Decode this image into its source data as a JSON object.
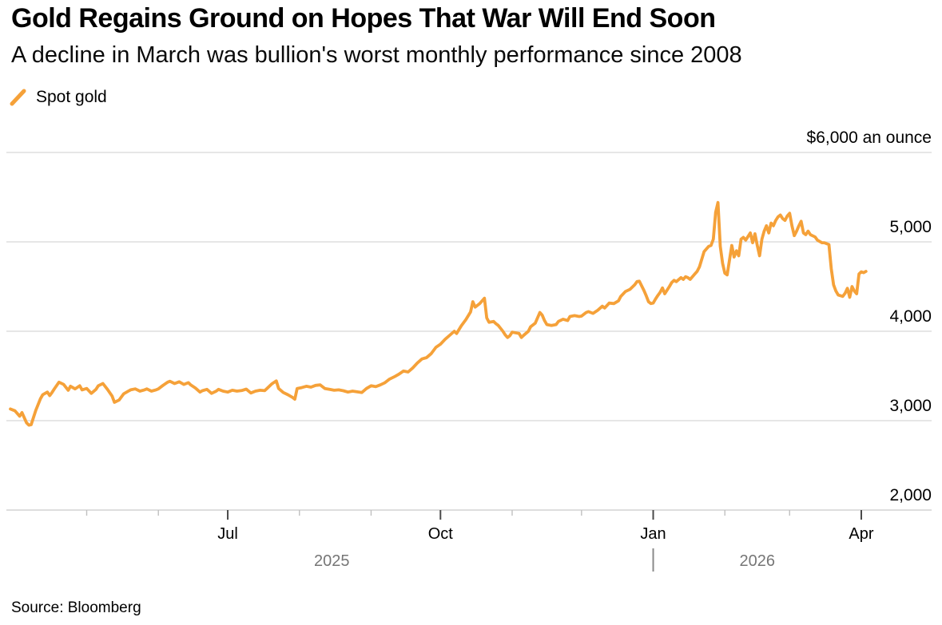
{
  "header": {
    "title": "Gold Regains Ground on Hopes That War Will End Soon",
    "subtitle": "A decline in March was bullion's worst monthly performance since 2008"
  },
  "legend": {
    "items": [
      {
        "label": "Spot gold",
        "marker": "orange-slash-icon"
      }
    ]
  },
  "source": "Source: Bloomberg",
  "colors": {
    "line": "#F5A139",
    "grid": "#D8D8D8",
    "axis": "#C9C9C9",
    "tick_minor": "#C0C0C0",
    "tick_major": "#4A4A4A",
    "year_text": "#767676",
    "divider": "#8A8A8A"
  },
  "chart_data": {
    "type": "line",
    "title": "Gold Regains Ground on Hopes That War Will End Soon",
    "subtitle": "A decline in March was bullion's worst monthly performance since 2008",
    "unit_label": "$6,000 an ounce",
    "grid": "horizontal",
    "legend_position": "top-left",
    "y_axis": {
      "min": 2000,
      "max": 6000,
      "ticks": [
        {
          "value": 6000,
          "label": "$6,000 an ounce"
        },
        {
          "value": 5000,
          "label": "5,000"
        },
        {
          "value": 4000,
          "label": "4,000"
        },
        {
          "value": 3000,
          "label": "3,000"
        },
        {
          "value": 2000,
          "label": "2,000"
        }
      ]
    },
    "x_axis": {
      "start": "2025-03-29",
      "end": "2026-04-08",
      "month_ticks": [
        "2025-05-01",
        "2025-06-01",
        "2025-07-01",
        "2025-08-01",
        "2025-09-01",
        "2025-10-01",
        "2025-11-01",
        "2025-12-01",
        "2026-01-01",
        "2026-02-01",
        "2026-03-01",
        "2026-04-01"
      ],
      "labeled_ticks": [
        {
          "date": "2025-07-01",
          "label": "Jul"
        },
        {
          "date": "2025-10-01",
          "label": "Oct"
        },
        {
          "date": "2026-01-01",
          "label": "Jan"
        },
        {
          "date": "2026-04-01",
          "label": "Apr"
        }
      ],
      "year_divider": "2026-01-01",
      "year_labels": [
        {
          "label": "2025",
          "span": [
            "2025-03-29",
            "2026-01-01"
          ]
        },
        {
          "label": "2026",
          "span": [
            "2026-01-01",
            "2026-04-01"
          ]
        }
      ]
    },
    "series": [
      {
        "name": "Spot gold",
        "color": "#F5A139",
        "points": [
          [
            "2025-03-29",
            3130
          ],
          [
            "2025-03-31",
            3110
          ],
          [
            "2025-04-02",
            3050
          ],
          [
            "2025-04-03",
            3090
          ],
          [
            "2025-04-05",
            2975
          ],
          [
            "2025-04-06",
            2950
          ],
          [
            "2025-04-07",
            2955
          ],
          [
            "2025-04-09",
            3115
          ],
          [
            "2025-04-11",
            3245
          ],
          [
            "2025-04-12",
            3290
          ],
          [
            "2025-04-14",
            3320
          ],
          [
            "2025-04-15",
            3280
          ],
          [
            "2025-04-16",
            3315
          ],
          [
            "2025-04-17",
            3355
          ],
          [
            "2025-04-19",
            3430
          ],
          [
            "2025-04-21",
            3405
          ],
          [
            "2025-04-23",
            3340
          ],
          [
            "2025-04-24",
            3385
          ],
          [
            "2025-04-26",
            3355
          ],
          [
            "2025-04-28",
            3390
          ],
          [
            "2025-04-29",
            3345
          ],
          [
            "2025-05-01",
            3360
          ],
          [
            "2025-05-03",
            3305
          ],
          [
            "2025-05-05",
            3350
          ],
          [
            "2025-05-06",
            3390
          ],
          [
            "2025-05-08",
            3415
          ],
          [
            "2025-05-10",
            3350
          ],
          [
            "2025-05-12",
            3275
          ],
          [
            "2025-05-13",
            3205
          ],
          [
            "2025-05-15",
            3230
          ],
          [
            "2025-05-17",
            3300
          ],
          [
            "2025-05-19",
            3330
          ],
          [
            "2025-05-20",
            3345
          ],
          [
            "2025-05-22",
            3355
          ],
          [
            "2025-05-24",
            3330
          ],
          [
            "2025-05-26",
            3345
          ],
          [
            "2025-05-27",
            3355
          ],
          [
            "2025-05-29",
            3330
          ],
          [
            "2025-05-31",
            3345
          ],
          [
            "2025-06-01",
            3355
          ],
          [
            "2025-06-03",
            3395
          ],
          [
            "2025-06-05",
            3430
          ],
          [
            "2025-06-06",
            3440
          ],
          [
            "2025-06-08",
            3415
          ],
          [
            "2025-06-10",
            3435
          ],
          [
            "2025-06-12",
            3405
          ],
          [
            "2025-06-14",
            3425
          ],
          [
            "2025-06-15",
            3400
          ],
          [
            "2025-06-17",
            3365
          ],
          [
            "2025-06-19",
            3320
          ],
          [
            "2025-06-20",
            3335
          ],
          [
            "2025-06-22",
            3350
          ],
          [
            "2025-06-24",
            3305
          ],
          [
            "2025-06-26",
            3330
          ],
          [
            "2025-06-27",
            3350
          ],
          [
            "2025-06-29",
            3330
          ],
          [
            "2025-07-01",
            3320
          ],
          [
            "2025-07-03",
            3340
          ],
          [
            "2025-07-05",
            3330
          ],
          [
            "2025-07-07",
            3337
          ],
          [
            "2025-07-09",
            3353
          ],
          [
            "2025-07-11",
            3310
          ],
          [
            "2025-07-13",
            3330
          ],
          [
            "2025-07-15",
            3340
          ],
          [
            "2025-07-17",
            3336
          ],
          [
            "2025-07-18",
            3360
          ],
          [
            "2025-07-20",
            3410
          ],
          [
            "2025-07-22",
            3445
          ],
          [
            "2025-07-23",
            3360
          ],
          [
            "2025-07-25",
            3315
          ],
          [
            "2025-07-27",
            3290
          ],
          [
            "2025-07-29",
            3260
          ],
          [
            "2025-07-30",
            3240
          ],
          [
            "2025-07-31",
            3360
          ],
          [
            "2025-08-02",
            3370
          ],
          [
            "2025-08-04",
            3385
          ],
          [
            "2025-08-06",
            3375
          ],
          [
            "2025-08-08",
            3395
          ],
          [
            "2025-08-10",
            3400
          ],
          [
            "2025-08-12",
            3360
          ],
          [
            "2025-08-14",
            3350
          ],
          [
            "2025-08-16",
            3340
          ],
          [
            "2025-08-18",
            3345
          ],
          [
            "2025-08-20",
            3335
          ],
          [
            "2025-08-22",
            3320
          ],
          [
            "2025-08-24",
            3330
          ],
          [
            "2025-08-26",
            3322
          ],
          [
            "2025-08-28",
            3315
          ],
          [
            "2025-08-30",
            3360
          ],
          [
            "2025-09-01",
            3390
          ],
          [
            "2025-09-03",
            3380
          ],
          [
            "2025-09-05",
            3400
          ],
          [
            "2025-09-07",
            3425
          ],
          [
            "2025-09-09",
            3465
          ],
          [
            "2025-09-11",
            3490
          ],
          [
            "2025-09-13",
            3520
          ],
          [
            "2025-09-15",
            3555
          ],
          [
            "2025-09-17",
            3545
          ],
          [
            "2025-09-19",
            3590
          ],
          [
            "2025-09-21",
            3645
          ],
          [
            "2025-09-23",
            3690
          ],
          [
            "2025-09-25",
            3705
          ],
          [
            "2025-09-27",
            3750
          ],
          [
            "2025-09-29",
            3820
          ],
          [
            "2025-10-01",
            3855
          ],
          [
            "2025-10-03",
            3910
          ],
          [
            "2025-10-05",
            3955
          ],
          [
            "2025-10-07",
            4000
          ],
          [
            "2025-10-08",
            3975
          ],
          [
            "2025-10-10",
            4060
          ],
          [
            "2025-10-12",
            4130
          ],
          [
            "2025-10-14",
            4215
          ],
          [
            "2025-10-15",
            4330
          ],
          [
            "2025-10-16",
            4270
          ],
          [
            "2025-10-18",
            4310
          ],
          [
            "2025-10-20",
            4370
          ],
          [
            "2025-10-21",
            4150
          ],
          [
            "2025-10-22",
            4100
          ],
          [
            "2025-10-24",
            4110
          ],
          [
            "2025-10-25",
            4085
          ],
          [
            "2025-10-26",
            4065
          ],
          [
            "2025-10-28",
            4000
          ],
          [
            "2025-10-29",
            3960
          ],
          [
            "2025-10-30",
            3930
          ],
          [
            "2025-10-31",
            3950
          ],
          [
            "2025-11-01",
            3990
          ],
          [
            "2025-11-02",
            3985
          ],
          [
            "2025-11-04",
            3975
          ],
          [
            "2025-11-05",
            3930
          ],
          [
            "2025-11-06",
            3955
          ],
          [
            "2025-11-08",
            4000
          ],
          [
            "2025-11-09",
            4050
          ],
          [
            "2025-11-11",
            4090
          ],
          [
            "2025-11-13",
            4210
          ],
          [
            "2025-11-14",
            4180
          ],
          [
            "2025-11-15",
            4120
          ],
          [
            "2025-11-16",
            4075
          ],
          [
            "2025-11-18",
            4065
          ],
          [
            "2025-11-20",
            4075
          ],
          [
            "2025-11-21",
            4110
          ],
          [
            "2025-11-23",
            4135
          ],
          [
            "2025-11-25",
            4120
          ],
          [
            "2025-11-26",
            4165
          ],
          [
            "2025-11-28",
            4175
          ],
          [
            "2025-11-30",
            4165
          ],
          [
            "2025-12-01",
            4170
          ],
          [
            "2025-12-03",
            4210
          ],
          [
            "2025-12-04",
            4220
          ],
          [
            "2025-12-06",
            4200
          ],
          [
            "2025-12-08",
            4235
          ],
          [
            "2025-12-10",
            4280
          ],
          [
            "2025-12-11",
            4260
          ],
          [
            "2025-12-13",
            4315
          ],
          [
            "2025-12-15",
            4310
          ],
          [
            "2025-12-17",
            4340
          ],
          [
            "2025-12-18",
            4390
          ],
          [
            "2025-12-20",
            4445
          ],
          [
            "2025-12-22",
            4470
          ],
          [
            "2025-12-24",
            4520
          ],
          [
            "2025-12-25",
            4555
          ],
          [
            "2025-12-26",
            4560
          ],
          [
            "2025-12-28",
            4455
          ],
          [
            "2025-12-29",
            4395
          ],
          [
            "2025-12-30",
            4330
          ],
          [
            "2025-12-31",
            4310
          ],
          [
            "2026-01-01",
            4315
          ],
          [
            "2026-01-02",
            4360
          ],
          [
            "2026-01-03",
            4400
          ],
          [
            "2026-01-04",
            4435
          ],
          [
            "2026-01-05",
            4485
          ],
          [
            "2026-01-06",
            4420
          ],
          [
            "2026-01-08",
            4500
          ],
          [
            "2026-01-09",
            4545
          ],
          [
            "2026-01-10",
            4570
          ],
          [
            "2026-01-11",
            4555
          ],
          [
            "2026-01-13",
            4600
          ],
          [
            "2026-01-14",
            4580
          ],
          [
            "2026-01-15",
            4610
          ],
          [
            "2026-01-16",
            4600
          ],
          [
            "2026-01-17",
            4580
          ],
          [
            "2026-01-19",
            4640
          ],
          [
            "2026-01-20",
            4670
          ],
          [
            "2026-01-21",
            4720
          ],
          [
            "2026-01-23",
            4890
          ],
          [
            "2026-01-25",
            4950
          ],
          [
            "2026-01-26",
            4960
          ],
          [
            "2026-01-27",
            5030
          ],
          [
            "2026-01-28",
            5330
          ],
          [
            "2026-01-29",
            5440
          ],
          [
            "2026-01-30",
            4950
          ],
          [
            "2026-01-31",
            4760
          ],
          [
            "2026-02-01",
            4650
          ],
          [
            "2026-02-02",
            4630
          ],
          [
            "2026-02-04",
            4960
          ],
          [
            "2026-02-05",
            4830
          ],
          [
            "2026-02-06",
            4900
          ],
          [
            "2026-02-07",
            4845
          ],
          [
            "2026-02-08",
            5030
          ],
          [
            "2026-02-09",
            5050
          ],
          [
            "2026-02-10",
            5020
          ],
          [
            "2026-02-12",
            5100
          ],
          [
            "2026-02-13",
            4990
          ],
          [
            "2026-02-14",
            5090
          ],
          [
            "2026-02-15",
            4960
          ],
          [
            "2026-02-16",
            4845
          ],
          [
            "2026-02-17",
            5030
          ],
          [
            "2026-02-18",
            5120
          ],
          [
            "2026-02-19",
            5180
          ],
          [
            "2026-02-20",
            5100
          ],
          [
            "2026-02-21",
            5210
          ],
          [
            "2026-02-22",
            5180
          ],
          [
            "2026-02-23",
            5240
          ],
          [
            "2026-02-24",
            5280
          ],
          [
            "2026-02-25",
            5300
          ],
          [
            "2026-02-26",
            5260
          ],
          [
            "2026-02-27",
            5240
          ],
          [
            "2026-02-28",
            5290
          ],
          [
            "2026-03-01",
            5320
          ],
          [
            "2026-03-02",
            5180
          ],
          [
            "2026-03-03",
            5070
          ],
          [
            "2026-03-04",
            5120
          ],
          [
            "2026-03-05",
            5180
          ],
          [
            "2026-03-06",
            5230
          ],
          [
            "2026-03-07",
            5100
          ],
          [
            "2026-03-08",
            5080
          ],
          [
            "2026-03-09",
            5120
          ],
          [
            "2026-03-10",
            5080
          ],
          [
            "2026-03-12",
            5055
          ],
          [
            "2026-03-13",
            5020
          ],
          [
            "2026-03-15",
            4990
          ],
          [
            "2026-03-16",
            4990
          ],
          [
            "2026-03-18",
            4970
          ],
          [
            "2026-03-19",
            4700
          ],
          [
            "2026-03-20",
            4520
          ],
          [
            "2026-03-21",
            4450
          ],
          [
            "2026-03-22",
            4405
          ],
          [
            "2026-03-24",
            4390
          ],
          [
            "2026-03-25",
            4425
          ],
          [
            "2026-03-26",
            4480
          ],
          [
            "2026-03-27",
            4380
          ],
          [
            "2026-03-28",
            4500
          ],
          [
            "2026-03-29",
            4450
          ],
          [
            "2026-03-30",
            4420
          ],
          [
            "2026-03-31",
            4640
          ],
          [
            "2026-04-01",
            4665
          ],
          [
            "2026-04-02",
            4655
          ],
          [
            "2026-04-03",
            4670
          ]
        ]
      }
    ]
  }
}
